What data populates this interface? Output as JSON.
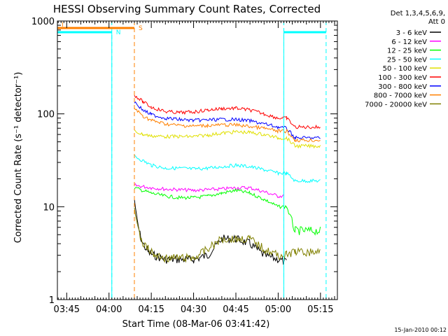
{
  "chart_data": {
    "type": "line",
    "title": "HESSI Observing Summary Count Rates, Corrected",
    "xlabel": "Start Time (08-Mar-06 03:41:42)",
    "ylabel": "Corrected Count Rate (s⁻¹ detector⁻¹)",
    "y_scale": "log",
    "ylim": [
      1,
      1000
    ],
    "xlim": [
      "03:41:42",
      "05:21:00"
    ],
    "x_ticks": [
      "03:45",
      "04:00",
      "04:15",
      "04:30",
      "04:45",
      "05:00",
      "05:15"
    ],
    "y_ticks": [
      "1",
      "10",
      "100",
      "1000"
    ],
    "legend_header": [
      "Det 1,3,4,5,6,9,",
      "Att 0"
    ],
    "legend_position": "right",
    "timestamp": "15-Jan-2010 00:12",
    "markers": {
      "N": {
        "label": "N",
        "color": "#00ffff"
      },
      "S": {
        "label": "S",
        "color": "#ff8000"
      }
    },
    "series": [
      {
        "name": "3 - 6 keV",
        "color": "#000000",
        "x": [
          "04:09",
          "04:10",
          "04:11",
          "04:12",
          "04:14",
          "04:16",
          "04:20",
          "04:25",
          "04:30",
          "04:35",
          "04:40",
          "04:45",
          "04:50",
          "04:55",
          "05:00",
          "05:03"
        ],
        "y": [
          12,
          7,
          5,
          4,
          3.2,
          3,
          2.7,
          2.7,
          2.7,
          3,
          4.5,
          4.5,
          4,
          3,
          2.7,
          2.5
        ]
      },
      {
        "name": "6 - 12 keV",
        "color": "#ff00ff",
        "x": [
          "04:09",
          "04:15",
          "04:20",
          "04:30",
          "04:40",
          "04:45",
          "04:50",
          "04:55",
          "05:00",
          "05:02"
        ],
        "y": [
          17,
          16,
          15.5,
          15,
          15.5,
          16,
          16,
          14.5,
          13,
          13
        ]
      },
      {
        "name": "12 - 25 keV",
        "color": "#00ff00",
        "x": [
          "04:09",
          "04:15",
          "04:20",
          "04:25",
          "04:30",
          "04:35",
          "04:40",
          "04:45",
          "04:50",
          "04:55",
          "05:00",
          "05:03",
          "05:06",
          "05:15"
        ],
        "y": [
          16,
          14,
          13,
          12.5,
          12.5,
          13,
          14,
          15,
          14,
          12,
          10,
          10,
          5.5,
          5.5
        ]
      },
      {
        "name": "25 - 50 keV",
        "color": "#00ffff",
        "x": [
          "04:09",
          "04:15",
          "04:20",
          "04:25",
          "04:30",
          "04:35",
          "04:40",
          "04:45",
          "04:50",
          "04:55",
          "05:00",
          "05:03",
          "05:06",
          "05:15"
        ],
        "y": [
          35,
          28,
          26,
          26,
          25.5,
          26,
          27,
          28,
          27,
          25,
          23,
          23,
          19,
          19
        ]
      },
      {
        "name": "50 - 100 keV",
        "color": "#e0e000",
        "x": [
          "04:09",
          "04:12",
          "04:15",
          "04:20",
          "04:25",
          "04:30",
          "04:35",
          "04:40",
          "04:45",
          "04:50",
          "04:55",
          "05:00",
          "05:03",
          "05:06",
          "05:15"
        ],
        "y": [
          65,
          60,
          58,
          57,
          57,
          57,
          59,
          62,
          64,
          63,
          60,
          55,
          55,
          45,
          45
        ]
      },
      {
        "name": "100 - 300 keV",
        "color": "#ff0000",
        "x": [
          "04:09",
          "04:12",
          "04:15",
          "04:20",
          "04:25",
          "04:30",
          "04:35",
          "04:40",
          "04:45",
          "04:50",
          "04:55",
          "05:00",
          "05:03",
          "05:06",
          "05:15"
        ],
        "y": [
          160,
          135,
          118,
          106,
          103,
          105,
          110,
          114,
          115,
          110,
          100,
          90,
          90,
          72,
          72
        ]
      },
      {
        "name": "300 - 800 keV",
        "color": "#0000ff",
        "x": [
          "04:09",
          "04:12",
          "04:15",
          "04:20",
          "04:25",
          "04:30",
          "04:35",
          "04:40",
          "04:45",
          "04:50",
          "04:55",
          "05:00",
          "05:03",
          "05:06",
          "05:15"
        ],
        "y": [
          135,
          110,
          98,
          90,
          87,
          85,
          86,
          87,
          87,
          84,
          78,
          72,
          70,
          55,
          55
        ]
      },
      {
        "name": "800 - 7000 keV",
        "color": "#ff8000",
        "x": [
          "04:09",
          "04:12",
          "04:15",
          "04:20",
          "04:25",
          "04:30",
          "04:35",
          "04:40",
          "04:45",
          "04:50",
          "04:55",
          "05:00",
          "05:03",
          "05:06",
          "05:15"
        ],
        "y": [
          115,
          95,
          85,
          78,
          75,
          74,
          75,
          76,
          76,
          73,
          70,
          65,
          65,
          52,
          52
        ]
      },
      {
        "name": "7000 - 20000 keV",
        "color": "#808000",
        "x": [
          "04:09",
          "04:10",
          "04:12",
          "04:14",
          "04:16",
          "04:20",
          "04:25",
          "04:30",
          "04:35",
          "04:40",
          "04:45",
          "04:50",
          "04:55",
          "05:00",
          "05:03",
          "05:06",
          "05:10",
          "05:15"
        ],
        "y": [
          10,
          6,
          4,
          3.5,
          3,
          2.8,
          2.8,
          2.8,
          3.5,
          4.5,
          4.5,
          4.5,
          3.5,
          3,
          3,
          3.3,
          3.2,
          3.3
        ]
      }
    ]
  }
}
